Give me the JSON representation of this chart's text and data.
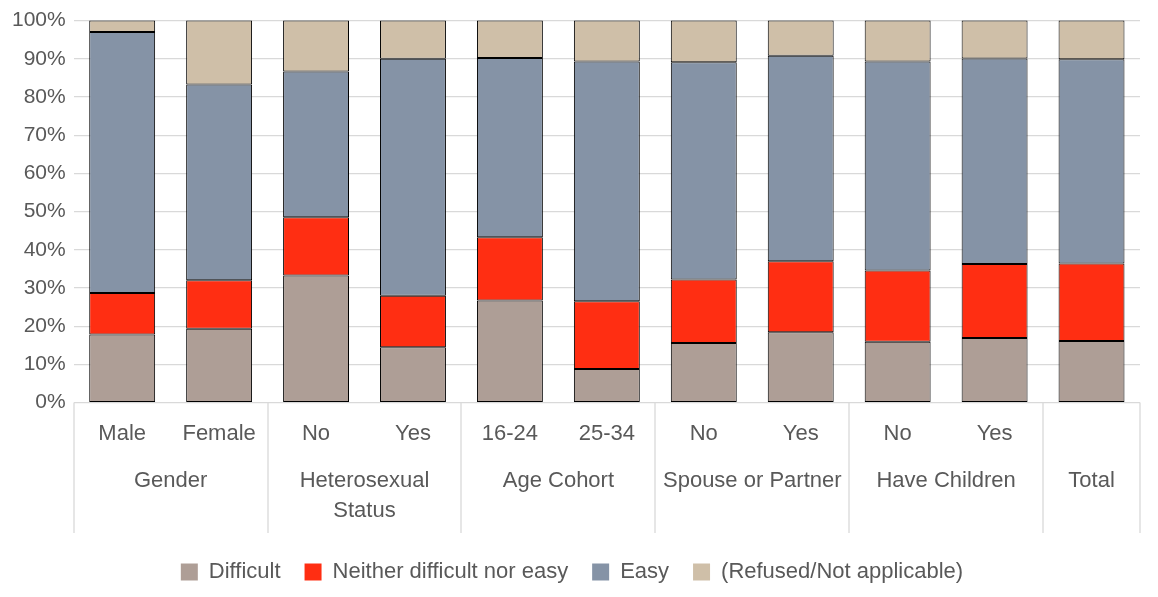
{
  "chart_data": {
    "type": "bar",
    "stacked": true,
    "categories": [
      "Male",
      "Female",
      "No",
      "Yes",
      "16-24",
      "25-34",
      "No",
      "Yes",
      "No",
      "Yes",
      null
    ],
    "series": [
      {
        "name": "Difficult",
        "color": "#ae9e96",
        "values": [
          17.8,
          19.3,
          33.3,
          14.5,
          26.7,
          8.8,
          15.6,
          18.4,
          15.9,
          16.9,
          16.1
        ]
      },
      {
        "name": "Neither difficult nor easy",
        "color": "#ff2e12",
        "values": [
          10.9,
          12.7,
          15.2,
          13.5,
          16.6,
          17.7,
          16.6,
          18.6,
          18.7,
          19.4,
          20.3
        ]
      },
      {
        "name": "Easy",
        "color": "#8593a6",
        "values": [
          68.3,
          51.3,
          38.2,
          62,
          46.9,
          62.8,
          56.9,
          53.8,
          54.7,
          53.8,
          53.5
        ]
      },
      {
        "name": "(Refused/Not applicable)",
        "color": "#cfbfa8",
        "values": [
          3,
          16.7,
          13.3,
          10,
          9.8,
          10.7,
          10.9,
          9.2,
          10.7,
          9.9,
          10.1
        ]
      }
    ],
    "ylim": [
      0,
      100
    ],
    "yticks": [
      {
        "value": 0,
        "label": "0%"
      },
      {
        "value": 10,
        "label": "10%"
      },
      {
        "value": 20,
        "label": "20%"
      },
      {
        "value": 30,
        "label": "30%"
      },
      {
        "value": 40,
        "label": "40%"
      },
      {
        "value": 50,
        "label": "50%"
      },
      {
        "value": 60,
        "label": "60%"
      },
      {
        "value": 70,
        "label": "70%"
      },
      {
        "value": 80,
        "label": "80%"
      },
      {
        "value": 90,
        "label": "90%"
      },
      {
        "value": 100,
        "label": "100%"
      }
    ],
    "grid": "y",
    "legend": "bottom",
    "annotations": [
      "Gender",
      "Heterosexual Status",
      "Age Cohort",
      "Spouse or Partner",
      "Have Children",
      "Total"
    ]
  }
}
